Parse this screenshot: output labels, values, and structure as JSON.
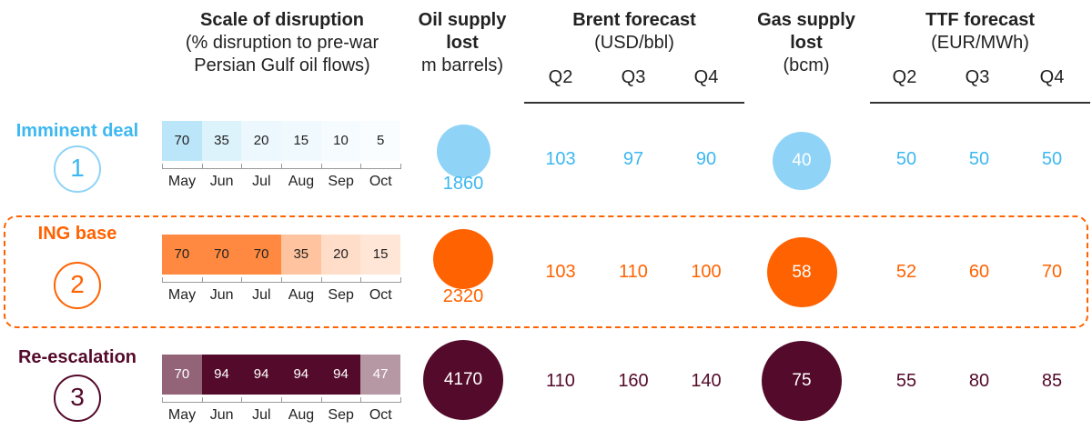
{
  "headers": {
    "scale_title": "Scale of disruption",
    "scale_sub1": "(% disruption to pre-war",
    "scale_sub2": "Persian Gulf oil flows)",
    "oil_title1": "Oil supply",
    "oil_title2": "lost",
    "oil_sub": "m barrels)",
    "brent_title": "Brent forecast",
    "brent_sub": "(USD/bbl)",
    "gas_title1": "Gas supply",
    "gas_title2": "lost",
    "gas_sub": "(bcm)",
    "ttf_title": "TTF forecast",
    "ttf_sub": "(EUR/MWh)",
    "quarters": [
      "Q2",
      "Q3",
      "Q4"
    ]
  },
  "months": [
    "May",
    "Jun",
    "Jul",
    "Aug",
    "Sep",
    "Oct"
  ],
  "colors": {
    "s1": "#3DB8F0",
    "s2": "#FF6200",
    "s3": "#540A2A",
    "s1_bubble": "#8FD3F7"
  },
  "chart_data": {
    "type": "table",
    "scenarios": [
      {
        "name": "Imminent deal",
        "number": "1",
        "disruption": [
          "70",
          "35",
          "20",
          "15",
          "10",
          "5"
        ],
        "oil_lost": "1860",
        "brent": [
          "103",
          "97",
          "90"
        ],
        "gas_lost": "40",
        "ttf": [
          "50",
          "50",
          "50"
        ]
      },
      {
        "name": "ING base",
        "number": "2",
        "disruption": [
          "70",
          "70",
          "70",
          "35",
          "20",
          "15"
        ],
        "oil_lost": "2320",
        "brent": [
          "103",
          "110",
          "100"
        ],
        "gas_lost": "58",
        "ttf": [
          "52",
          "60",
          "70"
        ]
      },
      {
        "name": "Re-escalation",
        "number": "3",
        "disruption": [
          "70",
          "94",
          "94",
          "94",
          "94",
          "47"
        ],
        "oil_lost": "4170",
        "brent": [
          "110",
          "160",
          "140"
        ],
        "gas_lost": "75",
        "ttf": [
          "55",
          "80",
          "85"
        ]
      }
    ]
  }
}
